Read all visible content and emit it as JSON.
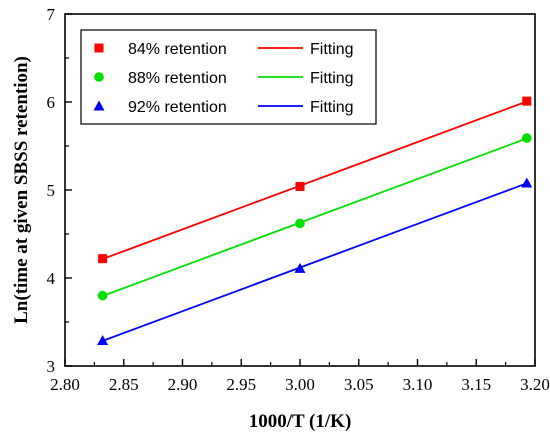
{
  "chart_data": {
    "type": "scatter",
    "xlabel": "1000/T (1/K)",
    "ylabel": "Ln(time at given SBSS retention)",
    "xlim": [
      2.8,
      3.2
    ],
    "ylim": [
      3,
      7
    ],
    "x_ticks": [
      "2.80",
      "2.85",
      "2.90",
      "2.95",
      "3.00",
      "3.05",
      "3.10",
      "3.15",
      "3.20"
    ],
    "y_ticks": [
      "3",
      "4",
      "5",
      "6",
      "7"
    ],
    "grid": false,
    "legend_position": "top-left",
    "series": [
      {
        "name": "84% retention",
        "fit_name": "Fitting",
        "marker": "square",
        "color": "#ff0000",
        "x": [
          2.832,
          3.0,
          3.193
        ],
        "y": [
          4.22,
          5.04,
          6.01
        ]
      },
      {
        "name": "88% retention",
        "fit_name": "Fitting",
        "marker": "circle",
        "color": "#00e000",
        "x": [
          2.832,
          3.0,
          3.193
        ],
        "y": [
          3.8,
          4.62,
          5.59
        ]
      },
      {
        "name": "92% retention",
        "fit_name": "Fitting",
        "marker": "triangle",
        "color": "#0000ff",
        "x": [
          2.832,
          3.0,
          3.193
        ],
        "y": [
          3.29,
          4.11,
          5.08
        ]
      }
    ]
  }
}
